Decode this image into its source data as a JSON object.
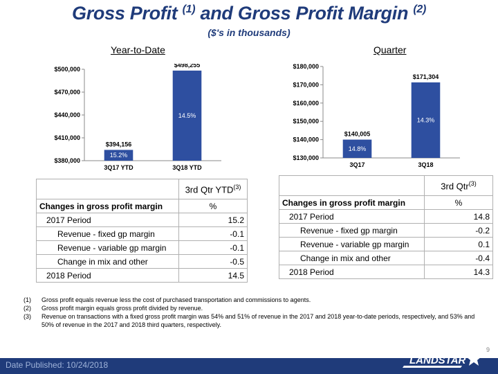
{
  "header": {
    "title_a": "Gross Profit ",
    "title_a_sup": "(1)",
    "title_b": " and Gross Profit Margin ",
    "title_b_sup": "(2)",
    "subtitle": "($'s in thousands)"
  },
  "sections": {
    "ytd_label": "Year-to-Date",
    "quarter_label": "Quarter"
  },
  "chart_data": [
    {
      "type": "bar",
      "categories": [
        "3Q17 YTD",
        "3Q18 YTD"
      ],
      "values": [
        394156,
        498255
      ],
      "value_labels": [
        "$394,156",
        "$498,255"
      ],
      "margin_labels": [
        "15.2%",
        "14.5%"
      ],
      "ylim": [
        380000,
        500000
      ],
      "yticks": [
        "$380,000",
        "$410,000",
        "$440,000",
        "$470,000",
        "$500,000"
      ],
      "bar_color": "#2e4fa0"
    },
    {
      "type": "bar",
      "categories": [
        "3Q17",
        "3Q18"
      ],
      "values": [
        140005,
        171304
      ],
      "value_labels": [
        "$140,005",
        "$171,304"
      ],
      "margin_labels": [
        "14.8%",
        "14.3%"
      ],
      "ylim": [
        130000,
        180000
      ],
      "yticks": [
        "$130,000",
        "$140,000",
        "$150,000",
        "$160,000",
        "$170,000",
        "$180,000"
      ],
      "bar_color": "#2e4fa0"
    }
  ],
  "ytd_table": {
    "header": "3rd Qtr YTD",
    "header_sup": "(3)",
    "col_label": "Changes in gross profit margin",
    "col_unit": "%",
    "rows": [
      {
        "label": "2017 Period",
        "value": "15.2"
      },
      {
        "label": "Revenue - fixed gp margin",
        "value": "-0.1"
      },
      {
        "label": "Revenue - variable gp margin",
        "value": "-0.1"
      },
      {
        "label": "Change in mix and other",
        "value": "-0.5"
      },
      {
        "label": "2018 Period",
        "value": "14.5"
      }
    ]
  },
  "qtr_table": {
    "header": "3rd Qtr",
    "header_sup": "(3)",
    "col_label": "Changes in gross profit margin",
    "col_unit": "%",
    "rows": [
      {
        "label": "2017 Period",
        "value": "14.8"
      },
      {
        "label": "Revenue - fixed gp margin",
        "value": "-0.2"
      },
      {
        "label": "Revenue - variable gp margin",
        "value": "0.1"
      },
      {
        "label": "Change in mix and other",
        "value": "-0.4"
      },
      {
        "label": "2018 Period",
        "value": "14.3"
      }
    ]
  },
  "footnotes": [
    {
      "n": "(1)",
      "text": "Gross profit equals revenue less the cost of purchased transportation and commissions to agents."
    },
    {
      "n": "(2)",
      "text": "Gross profit margin equals gross profit divided by revenue."
    },
    {
      "n": "(3)",
      "text": "Revenue on transactions with a fixed gross profit margin was 54% and 51% of revenue in the 2017 and 2018 year-to-date periods, respectively, and 53% and 50% of revenue in the 2017 and 2018 third quarters, respectively."
    }
  ],
  "footer": {
    "date": "Date Published:  10/24/2018",
    "page": "9",
    "logo": "LANDSTAR"
  },
  "colors": {
    "brand": "#1f3b7a",
    "bar": "#2e4fa0"
  }
}
